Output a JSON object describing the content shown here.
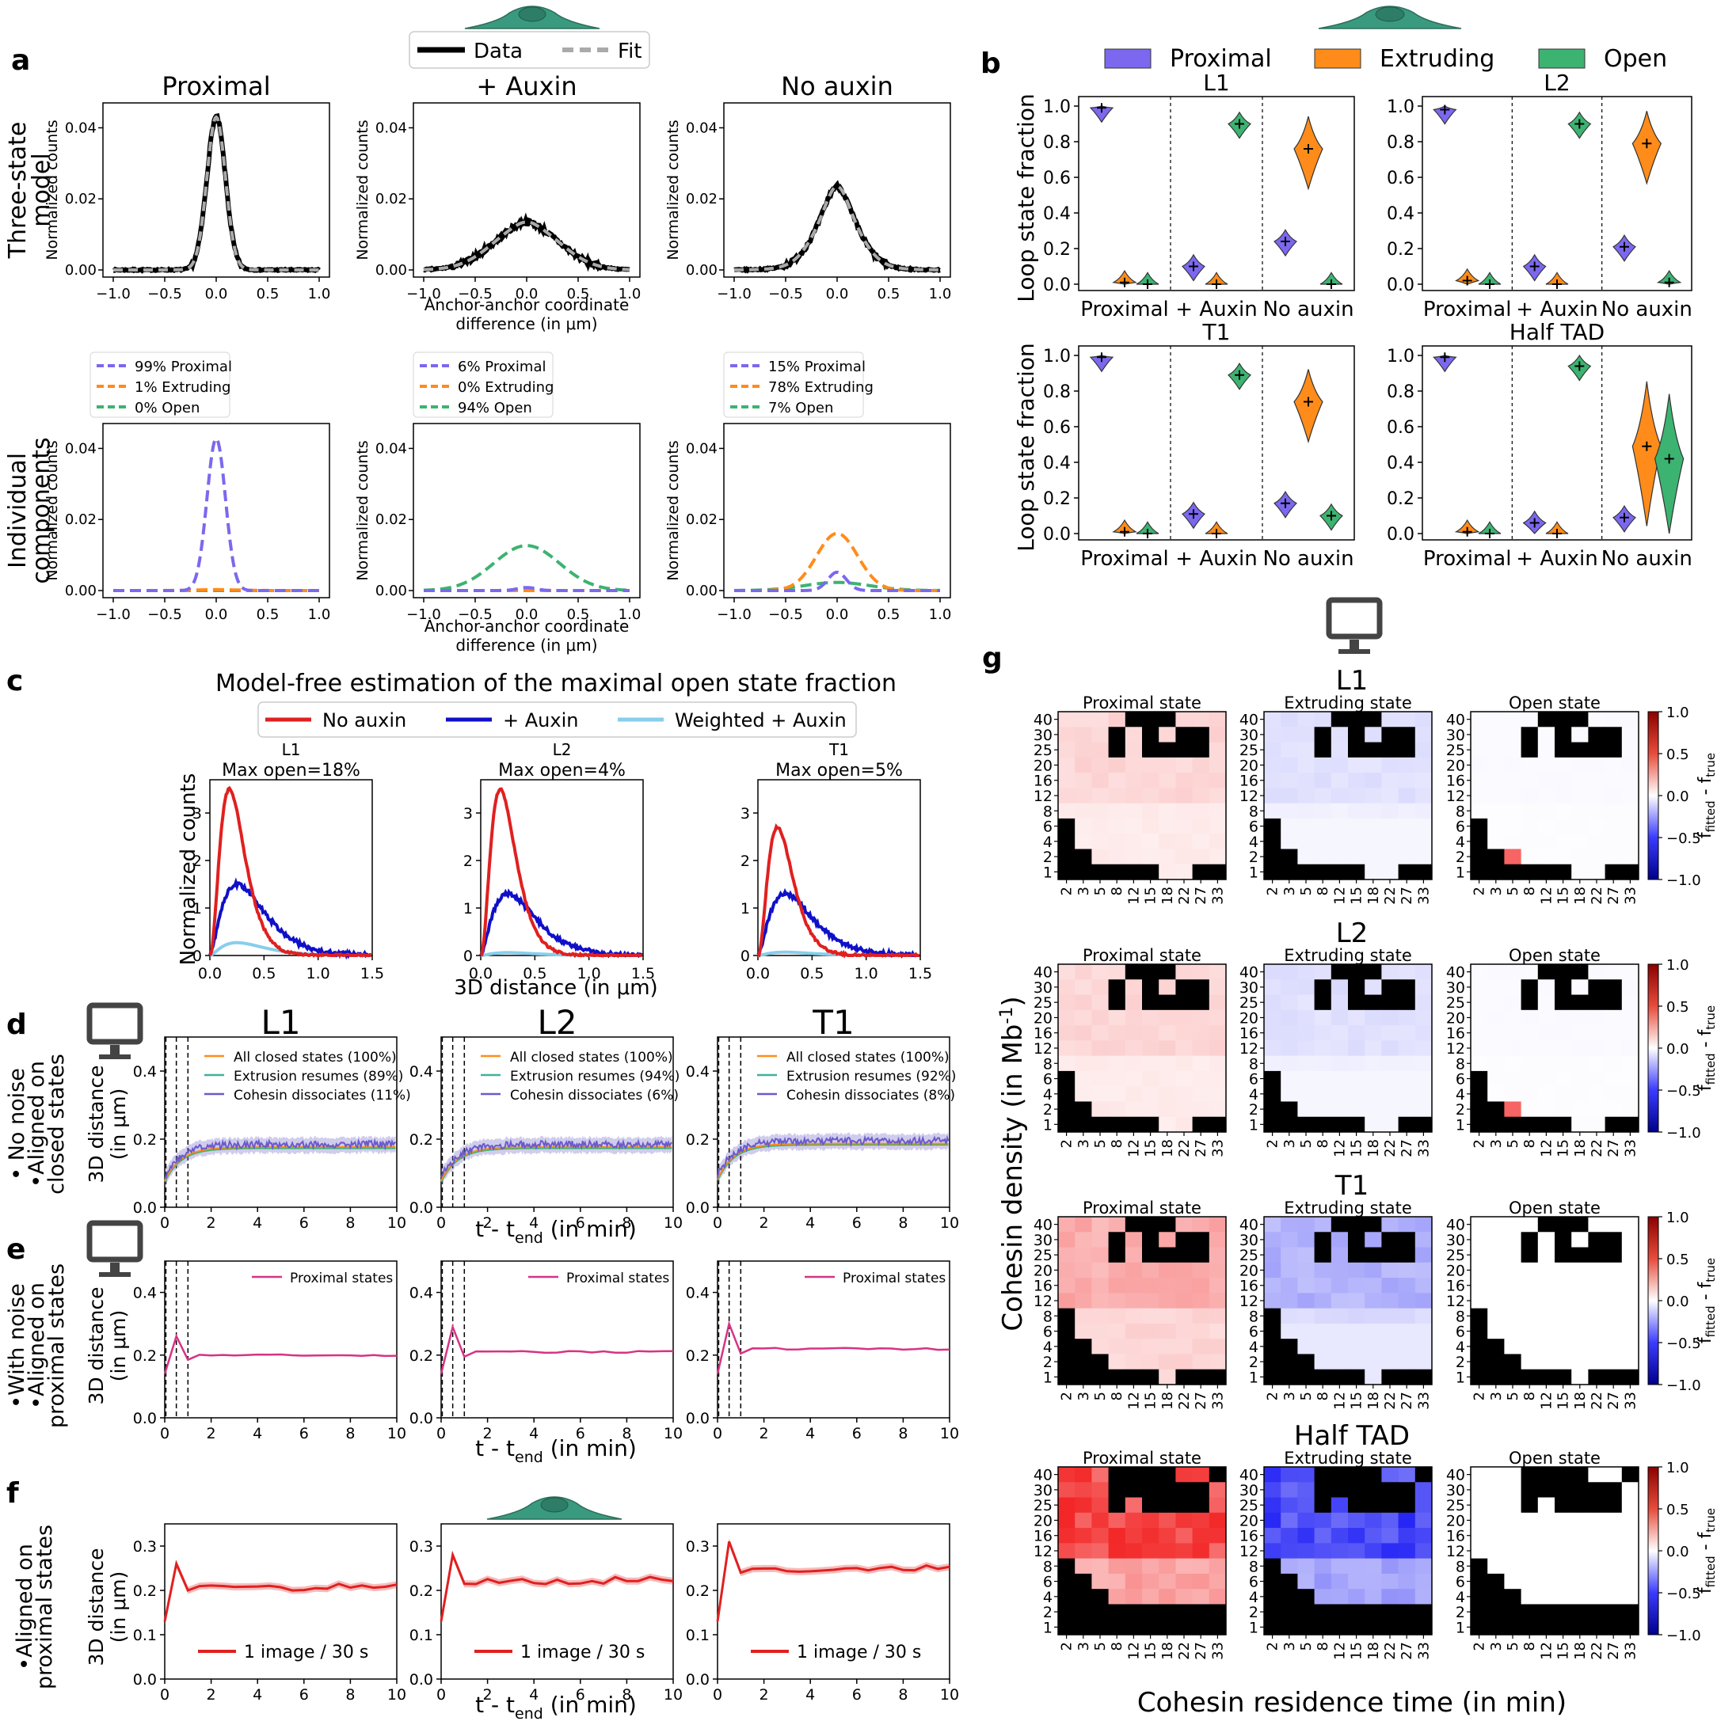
{
  "colors": {
    "proximal": "#7b68ee",
    "extruding": "#ff8c1a",
    "open": "#3cb371",
    "noaux": "#e02020",
    "aux": "#1010c8",
    "weighted": "#87ceeb",
    "prox_states": "#d63384",
    "cell": "#3a9a7f"
  },
  "panel_labels": {
    "a": "a",
    "b": "b",
    "c": "c",
    "d": "d",
    "e": "e",
    "f": "f",
    "g": "g"
  },
  "panel_a": {
    "legend": {
      "data": "Data",
      "fit": "Fit"
    },
    "titles": [
      "Proximal",
      "+ Auxin",
      "No auxin"
    ],
    "row_labels": [
      "Three-state\nmodel",
      "Individual\ncomponents"
    ],
    "ylabel": "Normalized counts",
    "xlabel": [
      "Anchor-anchor coordinate",
      "difference (in μm)"
    ],
    "xticks": [
      "−1.0",
      "−0.5",
      "0.0",
      "0.5",
      "1.0"
    ],
    "yticks": [
      "0.00",
      "0.02",
      "0.04"
    ],
    "components": [
      {
        "labels": [
          "99% Proximal",
          "1% Extruding",
          "0% Open"
        ],
        "fractions": [
          0.99,
          0.01,
          0.0
        ]
      },
      {
        "labels": [
          "6% Proximal",
          "0% Extruding",
          "94% Open"
        ],
        "fractions": [
          0.06,
          0.0,
          0.94
        ]
      },
      {
        "labels": [
          "15% Proximal",
          "78% Extruding",
          "7% Open"
        ],
        "fractions": [
          0.15,
          0.78,
          0.07
        ]
      }
    ],
    "chart_data": {
      "type": "line",
      "x_range": [
        -1,
        1
      ],
      "ylim": [
        0,
        0.045
      ],
      "fit_params": [
        {
          "prox_sd": 0.09,
          "ext_sd": 0.2,
          "open_sd": 0.35
        },
        {
          "prox_sd": 0.09,
          "ext_sd": 0.2,
          "open_sd": 0.35
        },
        {
          "prox_sd": 0.09,
          "ext_sd": 0.2,
          "open_sd": 0.35
        }
      ]
    }
  },
  "panel_b": {
    "legend": [
      "Proximal",
      "Extruding",
      "Open"
    ],
    "ylabel": "Loop state fraction",
    "yticks": [
      "0.0",
      "0.2",
      "0.4",
      "0.6",
      "0.8",
      "1.0"
    ],
    "xticks": [
      "Proximal",
      "+ Auxin",
      "No auxin"
    ],
    "chart_data": [
      {
        "title": "L1",
        "groups": [
          {
            "p": 0.99,
            "e": 0.01,
            "o": 0.0
          },
          {
            "p": 0.1,
            "e": 0.0,
            "o": 0.9
          },
          {
            "p": 0.24,
            "e": 0.76,
            "o": 0.0
          }
        ]
      },
      {
        "title": "L2",
        "groups": [
          {
            "p": 0.98,
            "e": 0.02,
            "o": 0.0
          },
          {
            "p": 0.1,
            "e": 0.0,
            "o": 0.9
          },
          {
            "p": 0.21,
            "e": 0.79,
            "o": 0.01
          }
        ]
      },
      {
        "title": "T1",
        "groups": [
          {
            "p": 0.99,
            "e": 0.01,
            "o": 0.0
          },
          {
            "p": 0.11,
            "e": 0.0,
            "o": 0.89
          },
          {
            "p": 0.17,
            "e": 0.74,
            "o": 0.1
          }
        ]
      },
      {
        "title": "Half TAD",
        "groups": [
          {
            "p": 0.99,
            "e": 0.01,
            "o": 0.0
          },
          {
            "p": 0.06,
            "e": 0.0,
            "o": 0.94
          },
          {
            "p": 0.09,
            "e": 0.49,
            "o": 0.42
          }
        ]
      }
    ]
  },
  "panel_c": {
    "title": "Model-free estimation of the maximal open state fraction",
    "legend": [
      "No auxin",
      "+ Auxin",
      "Weighted + Auxin"
    ],
    "ylabel": "Normalized counts",
    "xlabel": "3D distance (in μm)",
    "xticks": [
      "0.0",
      "0.5",
      "1.0",
      "1.5"
    ],
    "yticks": [
      "0",
      "1",
      "2",
      "3"
    ],
    "chart_data": [
      {
        "name": "L1",
        "subtitle": "Max open=18%",
        "noaux_peak": 3.5,
        "aux_peak": 1.5,
        "weighted_peak": 0.27
      },
      {
        "name": "L2",
        "subtitle": "Max open=4%",
        "noaux_peak": 3.5,
        "aux_peak": 1.3,
        "weighted_peak": 0.06
      },
      {
        "name": "T1",
        "subtitle": "Max open=5%",
        "noaux_peak": 2.7,
        "aux_peak": 1.3,
        "weighted_peak": 0.07
      }
    ]
  },
  "panel_d": {
    "titles": [
      "L1",
      "L2",
      "T1"
    ],
    "row_label": [
      "• No noise",
      "•Aligned on",
      "closed states"
    ],
    "ylabel": [
      "3D distance",
      "(in μm)"
    ],
    "xlabel": "t - t",
    "xlabel_sub": "end",
    "xlabel_tail": " (in min)",
    "xticks": [
      "0",
      "2",
      "4",
      "6",
      "8",
      "10"
    ],
    "yticks": [
      "0.0",
      "0.2",
      "0.4"
    ],
    "legends": [
      [
        "All closed states (100%)",
        "Extrusion resumes (89%)",
        "Cohesin dissociates (11%)"
      ],
      [
        "All closed states (100%)",
        "Extrusion resumes (94%)",
        "Cohesin dissociates (6%)"
      ],
      [
        "All closed states (100%)",
        "Extrusion resumes (92%)",
        "Cohesin dissociates (8%)"
      ]
    ],
    "chart_data": {
      "type": "line",
      "xlim": [
        0,
        10
      ],
      "ylim": [
        0,
        0.5
      ],
      "plateaus": [
        0.18,
        0.18,
        0.19
      ]
    }
  },
  "panel_e": {
    "row_label": [
      "•With noise",
      "•Aligned on",
      "proximal states"
    ],
    "legend": "Proximal states",
    "chart_data": {
      "type": "line",
      "xlim": [
        0,
        10
      ],
      "ylim": [
        0,
        0.5
      ],
      "peaks": [
        0.26,
        0.29,
        0.3
      ],
      "plateaus": [
        0.2,
        0.21,
        0.22
      ]
    }
  },
  "panel_f": {
    "row_label": [
      "•Aligned on",
      "proximal states"
    ],
    "legend": "1 image / 30 s",
    "yticks": [
      "0.0",
      "0.1",
      "0.2",
      "0.3"
    ],
    "chart_data": {
      "type": "line",
      "xlim": [
        0,
        10
      ],
      "ylim": [
        0,
        0.35
      ],
      "peaks": [
        0.26,
        0.28,
        0.31
      ],
      "plateaus": [
        0.205,
        0.22,
        0.245
      ]
    }
  },
  "panel_g": {
    "row_titles": [
      "L1",
      "L2",
      "T1",
      "Half TAD"
    ],
    "col_titles": [
      "Proximal state",
      "Extruding state",
      "Open state"
    ],
    "ylabel": "Cohesin density (in Mb",
    "ylabel_sup": "-1",
    "ylabel_tail": ")",
    "xlabel": "Cohesin residence time (in min)",
    "yticks": [
      "40",
      "30",
      "25",
      "20",
      "16",
      "12",
      "8",
      "6",
      "4",
      "2",
      "1"
    ],
    "xticks": [
      "2",
      "3",
      "5",
      "8",
      "12",
      "15",
      "18",
      "22",
      "27",
      "33"
    ],
    "cbar_ticks": [
      "1.0",
      "0.5",
      "0.0",
      "−0.5",
      "−1.0"
    ],
    "cbar_label": "f",
    "cbar_sub1": "fitted",
    "cbar_sub2": "true",
    "chart_data": {
      "type": "heatmap",
      "range": [
        -1,
        1
      ],
      "mean_bias": [
        [
          0.08,
          -0.06,
          -0.01
        ],
        [
          0.08,
          -0.06,
          -0.01
        ],
        [
          0.16,
          -0.15,
          0.0
        ],
        [
          0.35,
          -0.35,
          0.0
        ]
      ]
    }
  }
}
